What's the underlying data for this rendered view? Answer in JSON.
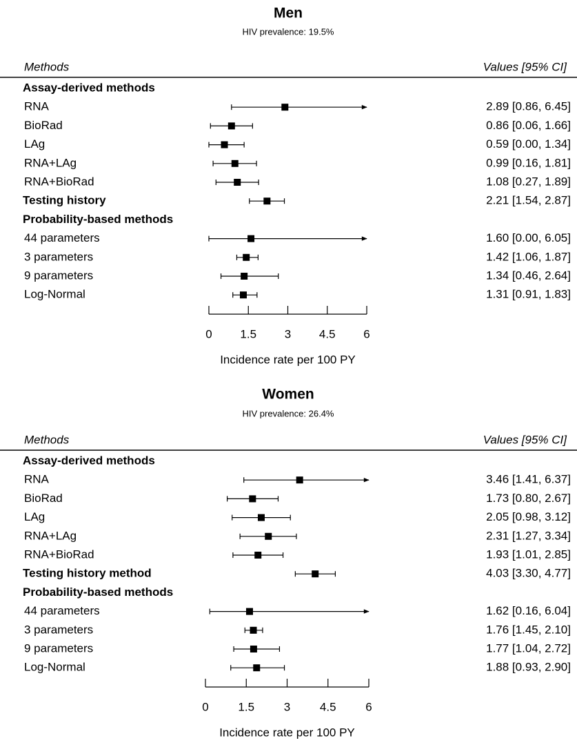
{
  "chart_data": [
    {
      "type": "forest",
      "title": "Men",
      "subtitle": "HIV prevalence: 19.5%",
      "column_headers": [
        "Methods",
        "Values [95% CI]"
      ],
      "groups": [
        {
          "name": "Assay-derived methods",
          "categories": [
            "RNA",
            "BioRad",
            "LAg",
            "RNA+LAg",
            "RNA+BioRad"
          ],
          "values": [
            2.89,
            0.86,
            0.59,
            0.99,
            1.08
          ],
          "lower": [
            0.86,
            0.06,
            0.0,
            0.16,
            0.27
          ],
          "upper": [
            6.45,
            1.66,
            1.34,
            1.81,
            1.89
          ],
          "value_labels": [
            "2.89 [0.86, 6.45]",
            "0.86 [0.06, 1.66]",
            "0.59 [0.00, 1.34]",
            "0.99 [0.16, 1.81]",
            "1.08 [0.27, 1.89]"
          ]
        },
        {
          "name": "Testing history",
          "value": 2.21,
          "lower": 1.54,
          "upper": 2.87,
          "value_label": "2.21 [1.54, 2.87]"
        },
        {
          "name": "Probability-based methods",
          "categories": [
            "44 parameters",
            "3 parameters",
            "9 parameters",
            "Log-Normal"
          ],
          "values": [
            1.6,
            1.42,
            1.34,
            1.31
          ],
          "lower": [
            0.0,
            1.06,
            0.46,
            0.91
          ],
          "upper": [
            6.05,
            1.87,
            2.64,
            1.83
          ],
          "value_labels": [
            "1.60 [0.00, 6.05]",
            "1.42 [1.06, 1.87]",
            "1.34 [0.46, 2.64]",
            "1.31 [0.91, 1.83]"
          ]
        }
      ],
      "xlim": [
        0,
        6
      ],
      "xticks": [
        0,
        1.5,
        3,
        4.5,
        6
      ],
      "x_label": "Incidence rate per 100 PY",
      "color": "#000000"
    },
    {
      "type": "forest",
      "title": "Women",
      "subtitle": "HIV prevalence: 26.4%",
      "column_headers": [
        "Methods",
        "Values [95% CI]"
      ],
      "groups": [
        {
          "name": "Assay-derived methods",
          "categories": [
            "RNA",
            "BioRad",
            "LAg",
            "RNA+LAg",
            "RNA+BioRad"
          ],
          "values": [
            3.46,
            1.73,
            2.05,
            2.31,
            1.93
          ],
          "lower": [
            1.41,
            0.8,
            0.98,
            1.27,
            1.01
          ],
          "upper": [
            6.37,
            2.67,
            3.12,
            3.34,
            2.85
          ],
          "value_labels": [
            "3.46 [1.41, 6.37]",
            "1.73 [0.80, 2.67]",
            "2.05 [0.98, 3.12]",
            "2.31 [1.27, 3.34]",
            "1.93 [1.01, 2.85]"
          ]
        },
        {
          "name": "Testing history method",
          "value": 4.03,
          "lower": 3.3,
          "upper": 4.77,
          "value_label": "4.03 [3.30, 4.77]"
        },
        {
          "name": "Probability-based methods",
          "categories": [
            "44 parameters",
            "3 parameters",
            "9 parameters",
            "Log-Normal"
          ],
          "values": [
            1.62,
            1.76,
            1.77,
            1.88
          ],
          "lower": [
            0.16,
            1.45,
            1.04,
            0.93
          ],
          "upper": [
            6.04,
            2.1,
            2.72,
            2.9
          ],
          "value_labels": [
            "1.62 [0.16, 6.04]",
            "1.76 [1.45, 2.10]",
            "1.77 [1.04, 2.72]",
            "1.88 [0.93, 2.90]"
          ]
        }
      ],
      "xlim": [
        0,
        6
      ],
      "xticks": [
        0,
        1.5,
        3,
        4.5,
        6
      ],
      "x_label": "Incidence rate per 100 PY",
      "color": "#000000"
    }
  ]
}
